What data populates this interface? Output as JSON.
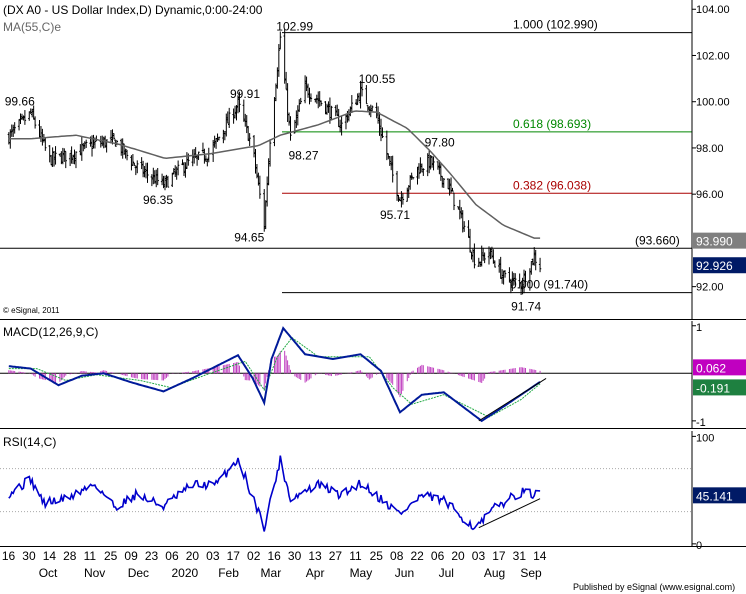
{
  "chart_data": [
    {
      "type": "candlestick",
      "panel": "price",
      "title": "(DX A0 - US Dollar Index,D) Dynamic,0:00-24:00",
      "indicator_label": "MA(55,C)e",
      "copyright": "© eSignal, 2011",
      "ylim": [
        90.6,
        104.4
      ],
      "y_ticks": [
        "104.00",
        "102.00",
        "100.00",
        "98.00",
        "96.00",
        "92.00"
      ],
      "y_tick_values": [
        104,
        102,
        100,
        98,
        96,
        92
      ],
      "price_labels": [
        {
          "value": 93.99,
          "text": "93.990",
          "bg": "#7f7f7f"
        },
        {
          "value": 92.926,
          "text": "92.926",
          "bg": "#001a66"
        }
      ],
      "annotations": [
        {
          "text": "102.99",
          "x": "2020-03-20",
          "y": 102.99
        },
        {
          "text": "100.55",
          "x": "2020-05-14",
          "y": 100.55
        },
        {
          "text": "99.91",
          "x": "2020-02-20",
          "y": 99.91
        },
        {
          "text": "99.66",
          "x": "2019-10-01",
          "y": 99.66
        },
        {
          "text": "98.27",
          "x": "2020-03-27",
          "y": 98.27
        },
        {
          "text": "97.80",
          "x": "2020-07-01",
          "y": 97.8
        },
        {
          "text": "96.35",
          "x": "2020-01-01",
          "y": 96.35
        },
        {
          "text": "95.71",
          "x": "2020-06-10",
          "y": 95.71
        },
        {
          "text": "94.65",
          "x": "2020-03-09",
          "y": 94.65
        },
        {
          "text": "91.74",
          "x": "2020-09-01",
          "y": 91.74
        }
      ],
      "levels": [
        {
          "text": "1.000 (102.990)",
          "value": 102.99,
          "color": "#000000"
        },
        {
          "text": "0.618 (98.693)",
          "value": 98.693,
          "color": "#008800"
        },
        {
          "text": "0.382 (96.038)",
          "value": 96.038,
          "color": "#aa0000"
        },
        {
          "text": "(93.660)",
          "value": 93.66,
          "color": "#000000"
        },
        {
          "text": "0.000 (91.740)",
          "value": 91.74,
          "color": "#000000"
        }
      ],
      "ma_anchors": [
        {
          "x": "2019-10-01",
          "y": 98.4
        },
        {
          "x": "2019-11-01",
          "y": 98.55
        },
        {
          "x": "2019-12-01",
          "y": 98.15
        },
        {
          "x": "2020-01-01",
          "y": 97.55
        },
        {
          "x": "2020-02-01",
          "y": 97.75
        },
        {
          "x": "2020-03-05",
          "y": 98.1
        },
        {
          "x": "2020-03-20",
          "y": 98.55
        },
        {
          "x": "2020-04-15",
          "y": 99.0
        },
        {
          "x": "2020-05-10",
          "y": 99.6
        },
        {
          "x": "2020-05-25",
          "y": 99.55
        },
        {
          "x": "2020-06-15",
          "y": 98.85
        },
        {
          "x": "2020-07-01",
          "y": 97.85
        },
        {
          "x": "2020-07-15",
          "y": 96.85
        },
        {
          "x": "2020-08-01",
          "y": 95.55
        },
        {
          "x": "2020-08-20",
          "y": 94.65
        },
        {
          "x": "2020-09-10",
          "y": 94.1
        }
      ],
      "close_anchors": [
        {
          "x": "2019-09-16",
          "y": 98.5
        },
        {
          "x": "2019-10-01",
          "y": 99.5
        },
        {
          "x": "2019-10-14",
          "y": 97.5
        },
        {
          "x": "2019-10-28",
          "y": 97.7
        },
        {
          "x": "2019-11-14",
          "y": 98.2
        },
        {
          "x": "2019-11-28",
          "y": 98.3
        },
        {
          "x": "2019-12-12",
          "y": 97.2
        },
        {
          "x": "2019-12-31",
          "y": 96.4
        },
        {
          "x": "2020-01-15",
          "y": 97.3
        },
        {
          "x": "2020-02-01",
          "y": 97.8
        },
        {
          "x": "2020-02-20",
          "y": 99.9
        },
        {
          "x": "2020-03-01",
          "y": 98.0
        },
        {
          "x": "2020-03-09",
          "y": 94.7
        },
        {
          "x": "2020-03-13",
          "y": 98.4
        },
        {
          "x": "2020-03-20",
          "y": 102.8
        },
        {
          "x": "2020-03-27",
          "y": 98.4
        },
        {
          "x": "2020-04-06",
          "y": 100.6
        },
        {
          "x": "2020-04-20",
          "y": 99.8
        },
        {
          "x": "2020-05-01",
          "y": 99.0
        },
        {
          "x": "2020-05-14",
          "y": 100.4
        },
        {
          "x": "2020-05-25",
          "y": 99.4
        },
        {
          "x": "2020-06-05",
          "y": 96.8
        },
        {
          "x": "2020-06-10",
          "y": 95.8
        },
        {
          "x": "2020-06-22",
          "y": 97.1
        },
        {
          "x": "2020-07-01",
          "y": 97.4
        },
        {
          "x": "2020-07-13",
          "y": 96.4
        },
        {
          "x": "2020-07-24",
          "y": 94.6
        },
        {
          "x": "2020-08-01",
          "y": 93.0
        },
        {
          "x": "2020-08-10",
          "y": 93.5
        },
        {
          "x": "2020-08-20",
          "y": 92.4
        },
        {
          "x": "2020-09-01",
          "y": 92.1
        },
        {
          "x": "2020-09-10",
          "y": 93.3
        },
        {
          "x": "2020-09-14",
          "y": 92.9
        }
      ]
    },
    {
      "type": "line",
      "panel": "macd",
      "title": "MACD(12,26,9,C)",
      "ylim": [
        -1.15,
        1.1
      ],
      "y_ticks": [
        "1",
        "-1"
      ],
      "y_tick_values": [
        1,
        -1
      ],
      "price_labels": [
        {
          "value": 0.062,
          "text": "0.062",
          "bg": "#c000c0"
        },
        {
          "value": -0.191,
          "text": "-0.191",
          "bg": "#1e8040"
        }
      ],
      "macd_anchors": [
        {
          "x": "2019-09-16",
          "y": 0.15
        },
        {
          "x": "2019-10-01",
          "y": 0.1
        },
        {
          "x": "2019-10-20",
          "y": -0.25
        },
        {
          "x": "2019-11-05",
          "y": -0.05
        },
        {
          "x": "2019-11-20",
          "y": 0.0
        },
        {
          "x": "2019-12-10",
          "y": -0.2
        },
        {
          "x": "2019-12-31",
          "y": -0.38
        },
        {
          "x": "2020-01-20",
          "y": -0.1
        },
        {
          "x": "2020-02-20",
          "y": 0.38
        },
        {
          "x": "2020-03-01",
          "y": -0.1
        },
        {
          "x": "2020-03-09",
          "y": -0.62
        },
        {
          "x": "2020-03-14",
          "y": 0.3
        },
        {
          "x": "2020-03-22",
          "y": 0.95
        },
        {
          "x": "2020-04-06",
          "y": 0.4
        },
        {
          "x": "2020-04-25",
          "y": 0.3
        },
        {
          "x": "2020-05-14",
          "y": 0.4
        },
        {
          "x": "2020-05-28",
          "y": 0.05
        },
        {
          "x": "2020-06-10",
          "y": -0.82
        },
        {
          "x": "2020-06-25",
          "y": -0.45
        },
        {
          "x": "2020-07-10",
          "y": -0.4
        },
        {
          "x": "2020-08-05",
          "y": -1.0
        },
        {
          "x": "2020-08-15",
          "y": -0.8
        },
        {
          "x": "2020-09-01",
          "y": -0.45
        },
        {
          "x": "2020-09-14",
          "y": -0.18
        }
      ],
      "signal_anchors": [
        {
          "x": "2019-09-16",
          "y": 0.1
        },
        {
          "x": "2019-10-05",
          "y": 0.1
        },
        {
          "x": "2019-10-25",
          "y": -0.15
        },
        {
          "x": "2019-11-15",
          "y": -0.03
        },
        {
          "x": "2019-12-15",
          "y": -0.15
        },
        {
          "x": "2020-01-05",
          "y": -0.3
        },
        {
          "x": "2020-02-01",
          "y": 0.0
        },
        {
          "x": "2020-02-25",
          "y": 0.25
        },
        {
          "x": "2020-03-09",
          "y": -0.35
        },
        {
          "x": "2020-03-18",
          "y": 0.35
        },
        {
          "x": "2020-03-28",
          "y": 0.75
        },
        {
          "x": "2020-04-15",
          "y": 0.35
        },
        {
          "x": "2020-05-20",
          "y": 0.35
        },
        {
          "x": "2020-06-05",
          "y": -0.3
        },
        {
          "x": "2020-06-18",
          "y": -0.65
        },
        {
          "x": "2020-07-10",
          "y": -0.45
        },
        {
          "x": "2020-08-10",
          "y": -0.92
        },
        {
          "x": "2020-09-01",
          "y": -0.55
        },
        {
          "x": "2020-09-14",
          "y": -0.22
        }
      ],
      "trendline": [
        {
          "x": "2020-08-03",
          "y": -1.0
        },
        {
          "x": "2020-09-14",
          "y": -0.15
        }
      ]
    },
    {
      "type": "line",
      "panel": "rsi",
      "title": "RSI(14,C)",
      "ylim": [
        -2,
        105
      ],
      "y_ticks": [
        "100",
        "0"
      ],
      "y_tick_values": [
        100,
        0
      ],
      "price_labels": [
        {
          "value": 45.141,
          "text": "45.141",
          "bg": "#001a66"
        }
      ],
      "rsi_anchors": [
        {
          "x": "2019-09-16",
          "y": 47
        },
        {
          "x": "2019-10-01",
          "y": 60
        },
        {
          "x": "2019-10-10",
          "y": 38
        },
        {
          "x": "2019-10-25",
          "y": 42
        },
        {
          "x": "2019-11-14",
          "y": 56
        },
        {
          "x": "2019-11-28",
          "y": 34
        },
        {
          "x": "2019-12-12",
          "y": 46
        },
        {
          "x": "2019-12-31",
          "y": 35
        },
        {
          "x": "2020-01-20",
          "y": 55
        },
        {
          "x": "2020-02-05",
          "y": 55
        },
        {
          "x": "2020-02-20",
          "y": 79
        },
        {
          "x": "2020-03-09",
          "y": 16
        },
        {
          "x": "2020-03-20",
          "y": 78
        },
        {
          "x": "2020-03-27",
          "y": 42
        },
        {
          "x": "2020-04-15",
          "y": 55
        },
        {
          "x": "2020-05-01",
          "y": 45
        },
        {
          "x": "2020-05-14",
          "y": 57
        },
        {
          "x": "2020-06-10",
          "y": 28
        },
        {
          "x": "2020-06-25",
          "y": 45
        },
        {
          "x": "2020-07-10",
          "y": 40
        },
        {
          "x": "2020-08-01",
          "y": 14
        },
        {
          "x": "2020-08-15",
          "y": 35
        },
        {
          "x": "2020-09-01",
          "y": 48
        },
        {
          "x": "2020-09-14",
          "y": 45
        }
      ],
      "guide_values": [
        70,
        30
      ],
      "trendline": [
        {
          "x": "2020-08-03",
          "y": 15
        },
        {
          "x": "2020-09-14",
          "y": 42
        }
      ]
    }
  ],
  "x_axis": {
    "start": "2019-09-12",
    "end": "2020-09-16",
    "ticks": [
      {
        "x": "2019-09-16",
        "text": "16"
      },
      {
        "x": "2019-09-30",
        "text": "30"
      },
      {
        "x": "2019-10-14",
        "text": "14"
      },
      {
        "x": "2019-10-28",
        "text": "28"
      },
      {
        "x": "2019-11-11",
        "text": "11"
      },
      {
        "x": "2019-11-25",
        "text": "25"
      },
      {
        "x": "2019-12-09",
        "text": "09"
      },
      {
        "x": "2019-12-23",
        "text": "23"
      },
      {
        "x": "2020-01-06",
        "text": "06"
      },
      {
        "x": "2020-01-20",
        "text": "20"
      },
      {
        "x": "2020-02-03",
        "text": "03"
      },
      {
        "x": "2020-02-17",
        "text": "17"
      },
      {
        "x": "2020-03-02",
        "text": "02"
      },
      {
        "x": "2020-03-16",
        "text": "16"
      },
      {
        "x": "2020-03-30",
        "text": "30"
      },
      {
        "x": "2020-04-13",
        "text": "13"
      },
      {
        "x": "2020-04-27",
        "text": "27"
      },
      {
        "x": "2020-05-11",
        "text": "11"
      },
      {
        "x": "2020-05-25",
        "text": "25"
      },
      {
        "x": "2020-06-08",
        "text": "08"
      },
      {
        "x": "2020-06-22",
        "text": "22"
      },
      {
        "x": "2020-07-06",
        "text": "06"
      },
      {
        "x": "2020-07-20",
        "text": "20"
      },
      {
        "x": "2020-08-03",
        "text": "03"
      },
      {
        "x": "2020-08-17",
        "text": "17"
      },
      {
        "x": "2020-08-31",
        "text": "31"
      },
      {
        "x": "2020-09-14",
        "text": "14"
      }
    ],
    "months": [
      {
        "x": "2019-10-14",
        "text": "Oct"
      },
      {
        "x": "2019-11-14",
        "text": "Nov"
      },
      {
        "x": "2019-12-14",
        "text": "Dec"
      },
      {
        "x": "2020-01-13",
        "text": "2020"
      },
      {
        "x": "2020-02-14",
        "text": "Feb"
      },
      {
        "x": "2020-03-14",
        "text": "Mar"
      },
      {
        "x": "2020-04-14",
        "text": "Apr"
      },
      {
        "x": "2020-05-14",
        "text": "May"
      },
      {
        "x": "2020-06-14",
        "text": "Jun"
      },
      {
        "x": "2020-07-14",
        "text": "Jul"
      },
      {
        "x": "2020-08-14",
        "text": "Aug"
      },
      {
        "x": "2020-09-08",
        "text": "Sep"
      }
    ]
  },
  "footer": {
    "text": "Published by eSignal (www.esignal.com)"
  },
  "colors": {
    "candle": "#000000",
    "ma": "#606060",
    "macd": "#001a99",
    "signal": "#22aa44",
    "histogram": "#c040c0",
    "rsi": "#0000cc",
    "axis": "#000000",
    "guide": "#aaaaaa"
  }
}
